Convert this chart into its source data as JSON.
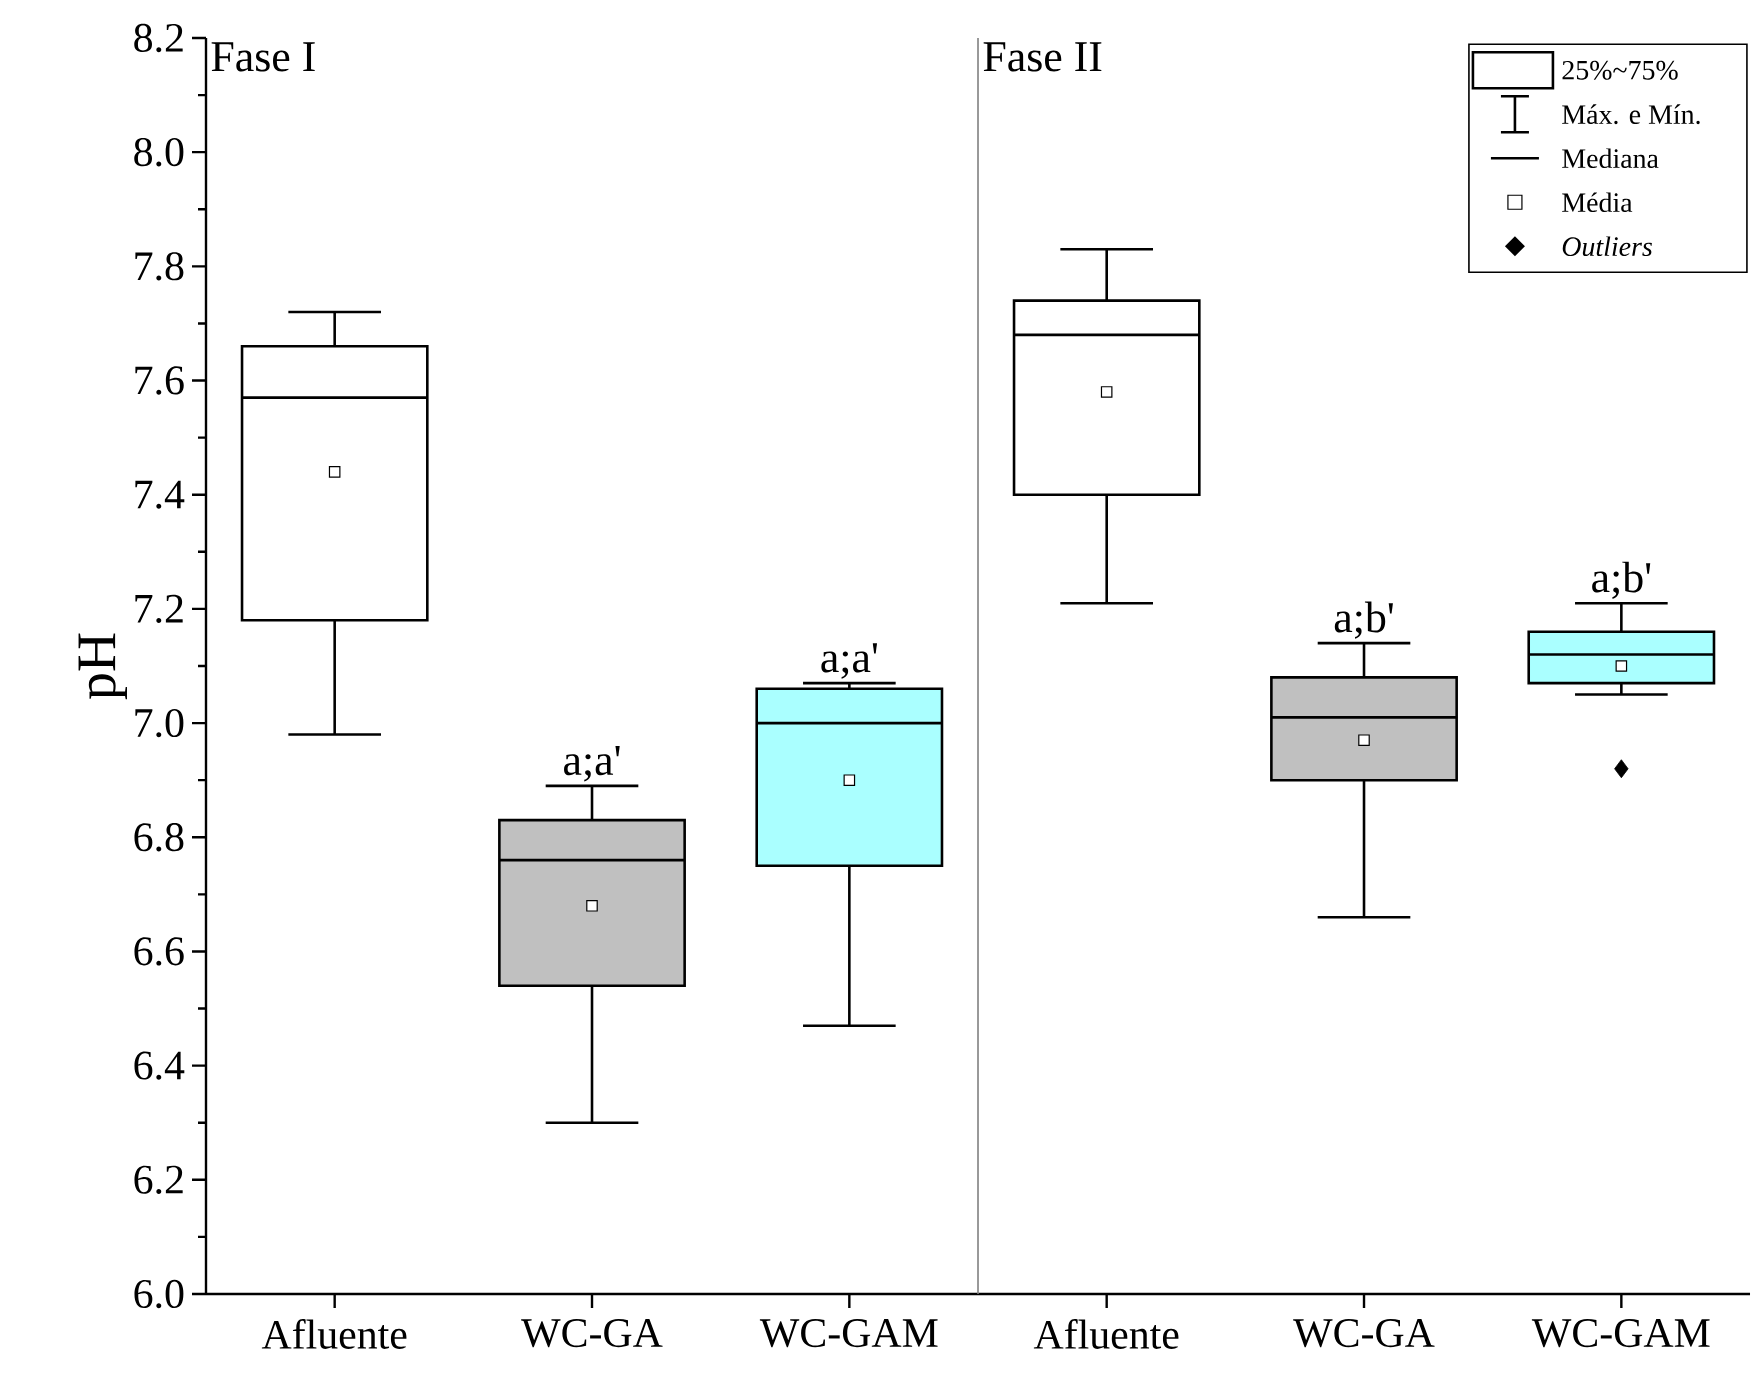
{
  "chart_data": {
    "type": "box",
    "ylabel": "pH",
    "categories": [
      "Afluente",
      "WC-GA",
      "WC-GAM",
      "Afluente",
      "WC-GA",
      "WC-GAM"
    ],
    "colors": [
      "#ffffff",
      "#c0c0c0",
      "#aaffff",
      "#ffffff",
      "#c0c0c0",
      "#aaffff"
    ],
    "boxes": [
      {
        "low": 6.98,
        "q1": 7.18,
        "median": 7.57,
        "q3": 7.66,
        "high": 7.72,
        "mean": 7.44
      },
      {
        "low": 6.3,
        "q1": 6.54,
        "median": 6.76,
        "q3": 6.83,
        "high": 6.89,
        "mean": 6.68
      },
      {
        "low": 6.47,
        "q1": 6.75,
        "median": 7.0,
        "q3": 7.06,
        "high": 7.07,
        "mean": 6.9
      },
      {
        "low": 7.21,
        "q1": 7.4,
        "median": 7.68,
        "q3": 7.74,
        "high": 7.83,
        "mean": 7.58
      },
      {
        "low": 6.66,
        "q1": 6.9,
        "median": 7.01,
        "q3": 7.08,
        "high": 7.14,
        "mean": 6.97
      },
      {
        "low": 7.05,
        "q1": 7.07,
        "median": 7.12,
        "q3": 7.16,
        "high": 7.21,
        "mean": 7.1,
        "outliers": [
          6.92
        ]
      }
    ],
    "ylim": [
      6.0,
      8.2
    ],
    "yticks": [
      {
        "value": 6.0,
        "label": "6.0"
      },
      {
        "value": 6.2,
        "label": "6.2"
      },
      {
        "value": 6.4,
        "label": "6.4"
      },
      {
        "value": 6.6,
        "label": "6.6"
      },
      {
        "value": 6.8,
        "label": "6.8"
      },
      {
        "value": 7.0,
        "label": "7.0"
      },
      {
        "value": 7.2,
        "label": "7.2"
      },
      {
        "value": 7.4,
        "label": "7.4"
      },
      {
        "value": 7.6,
        "label": "7.6"
      },
      {
        "value": 7.8,
        "label": "7.8"
      },
      {
        "value": 8.0,
        "label": "8.0"
      },
      {
        "value": 8.2,
        "label": "8.2"
      }
    ],
    "annotations": [
      "Fase I",
      "Fase II",
      {
        "text": "a;a'",
        "x": "WC-GA",
        "y": 6.89
      },
      {
        "text": "a;a'",
        "x": "WC-GAM",
        "y": 7.07
      },
      "a;b'",
      "a;b'",
      "25%~75%",
      "Máx. e Mín.",
      "Mediana",
      "Média",
      "*Outliers*"
    ]
  }
}
